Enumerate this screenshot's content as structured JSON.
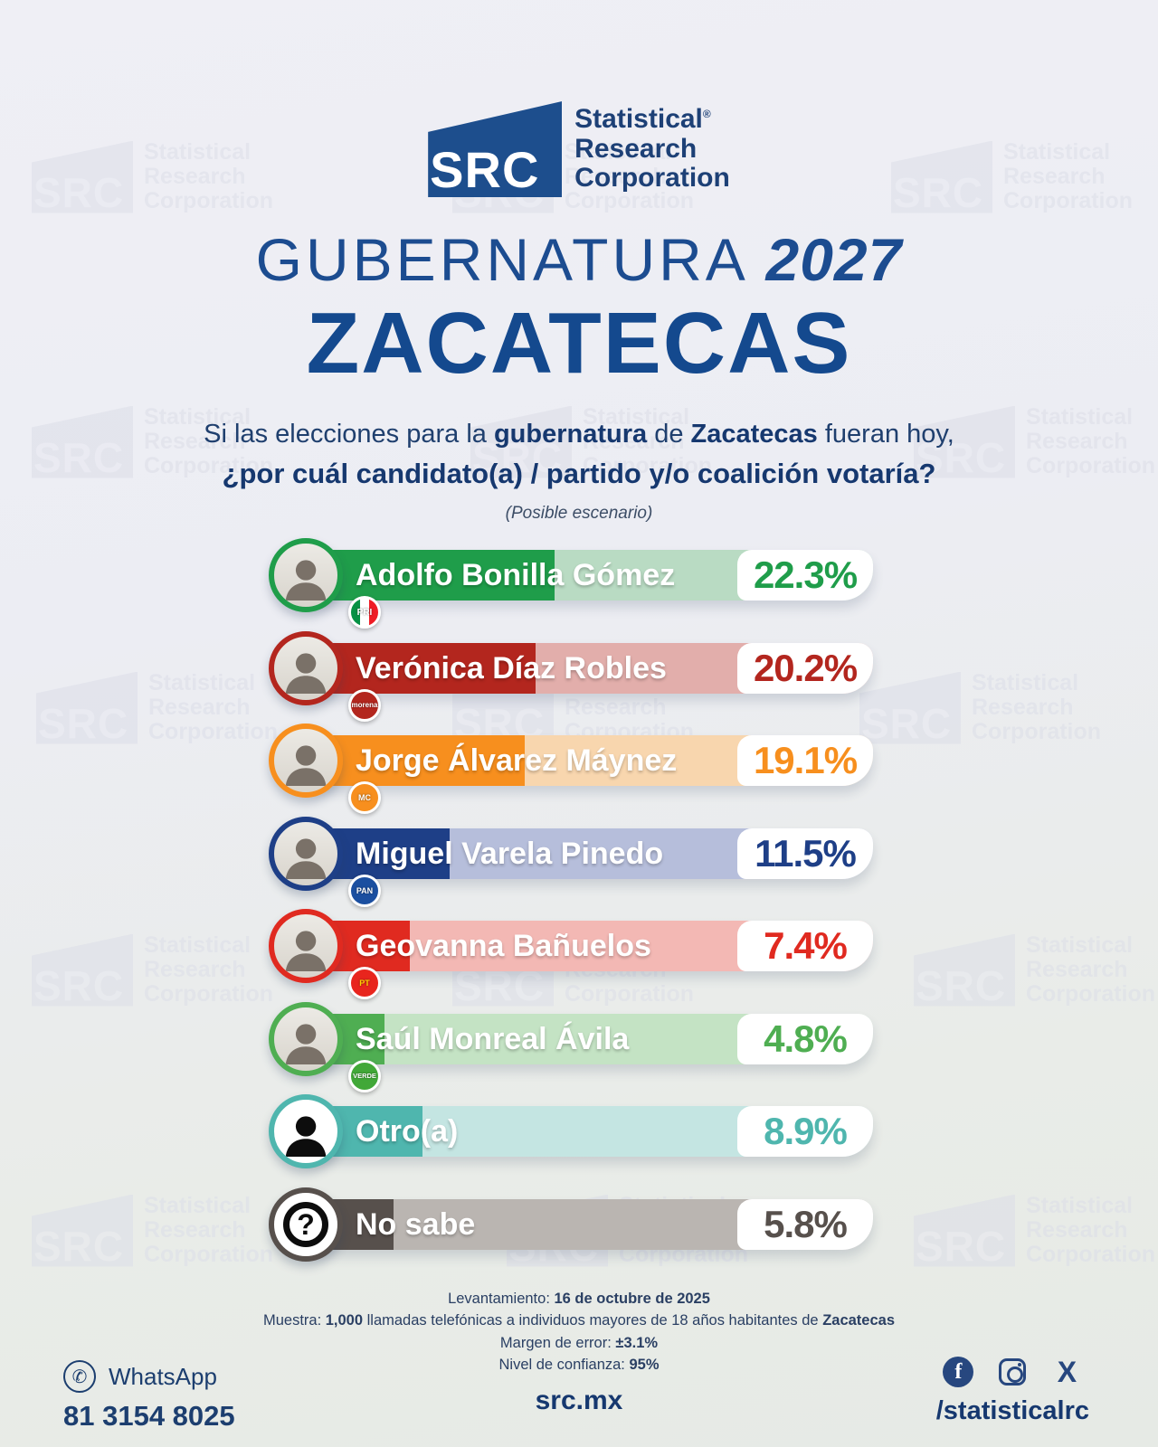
{
  "brand": {
    "acronym": "SRC",
    "word1": "Statistical",
    "reg": "®",
    "word2": "Research",
    "word3": "Corporation"
  },
  "header": {
    "kicker": "GUBERNATURA",
    "year": "2027",
    "state": "ZACATECAS"
  },
  "question": {
    "p1": "Si las elecciones para la ",
    "b1": "gubernatura",
    "p2": " de ",
    "b2": "Zacatecas",
    "p3": " fueran hoy,",
    "line2": "¿por cuál candidato(a) / partido y/o coalición votaría?",
    "note": "(Posible escenario)"
  },
  "chart_data": {
    "type": "bar",
    "title": "GUBERNATURA 2027 ZACATECAS",
    "question": "Si las elecciones para la gubernatura de Zacatecas fueran hoy, ¿por cuál candidato(a) / partido y/o coalición votaría?",
    "note": "(Posible escenario)",
    "unit": "%",
    "categories": [
      "Adolfo Bonilla Gómez",
      "Verónica Díaz Robles",
      "Jorge Álvarez Máynez",
      "Miguel Varela Pinedo",
      "Geovanna Bañuelos",
      "Saúl Monreal Ávila",
      "Otro(a)",
      "No sabe"
    ],
    "values": [
      22.3,
      20.2,
      19.1,
      11.5,
      7.4,
      4.8,
      8.9,
      5.8
    ],
    "parties": [
      "PRI",
      "morena",
      "MC",
      "PAN",
      "PT",
      "VERDE",
      null,
      null
    ]
  },
  "results": [
    {
      "name": "Adolfo Bonilla Gómez",
      "pct_label": "22.3%",
      "value": 22.3,
      "party": "PRI",
      "party_color": "#069144",
      "solid": "#1f9d4a",
      "tint": "#b9dbc3",
      "fill_pct": 44.1,
      "avatar": "photo"
    },
    {
      "name": "Verónica Díaz Robles",
      "pct_label": "20.2%",
      "value": 20.2,
      "party": "morena",
      "party_color": "#b3261e",
      "solid": "#b3261e",
      "tint": "#e2aeab",
      "fill_pct": 40.8,
      "avatar": "photo"
    },
    {
      "name": "Jorge Álvarez Máynez",
      "pct_label": "19.1%",
      "value": 19.1,
      "party": "MC",
      "party_color": "#f78f1e",
      "solid": "#f78f1e",
      "tint": "#f8d6ae",
      "fill_pct": 38.9,
      "avatar": "photo"
    },
    {
      "name": "Miguel Varela Pinedo",
      "pct_label": "11.5%",
      "value": 11.5,
      "party": "PAN",
      "party_color": "#1b4fa0",
      "solid": "#1e3f87",
      "tint": "#b6bedb",
      "fill_pct": 25.7,
      "avatar": "photo"
    },
    {
      "name": "Geovanna Bañuelos",
      "pct_label": "7.4%",
      "value": 7.4,
      "party": "PT",
      "party_color": "#e8251d",
      "solid": "#e02a20",
      "tint": "#f3b8b4",
      "fill_pct": 18.7,
      "avatar": "photo"
    },
    {
      "name": "Saúl Monreal Ávila",
      "pct_label": "4.8%",
      "value": 4.8,
      "party": "VERDE",
      "party_color": "#41a838",
      "solid": "#4fae52",
      "tint": "#c4e3c4",
      "fill_pct": 14.3,
      "avatar": "photo"
    },
    {
      "name": "Otro(a)",
      "pct_label": "8.9%",
      "value": 8.9,
      "party": null,
      "party_color": null,
      "solid": "#4fb6ae",
      "tint": "#c4e5e2",
      "fill_pct": 21.0,
      "avatar": "person"
    },
    {
      "name": "No sabe",
      "pct_label": "5.8%",
      "value": 5.8,
      "party": null,
      "party_color": null,
      "solid": "#57504c",
      "tint": "#bab5b1",
      "fill_pct": 15.9,
      "avatar": "question",
      "icon_glyph": "?"
    }
  ],
  "footer": {
    "l1a": "Levantamiento: ",
    "l1b": "16 de octubre de 2025",
    "l2a": "Muestra: ",
    "l2b": "1,000",
    "l2c": " llamadas telefónicas a individuos mayores de 18 años habitantes de ",
    "l2d": "Zacatecas",
    "l3a": "Margen de error: ",
    "l3b": "±3.1%",
    "l4a": "Nivel de confianza: ",
    "l4b": "95%"
  },
  "contact": {
    "whatsapp_label": "WhatsApp",
    "phone": "81 3154 8025",
    "website": "src.mx",
    "social_handle": "/statisticalrc"
  },
  "colors": {
    "navy": "#16386f",
    "logo_blue": "#1d4e8d"
  }
}
